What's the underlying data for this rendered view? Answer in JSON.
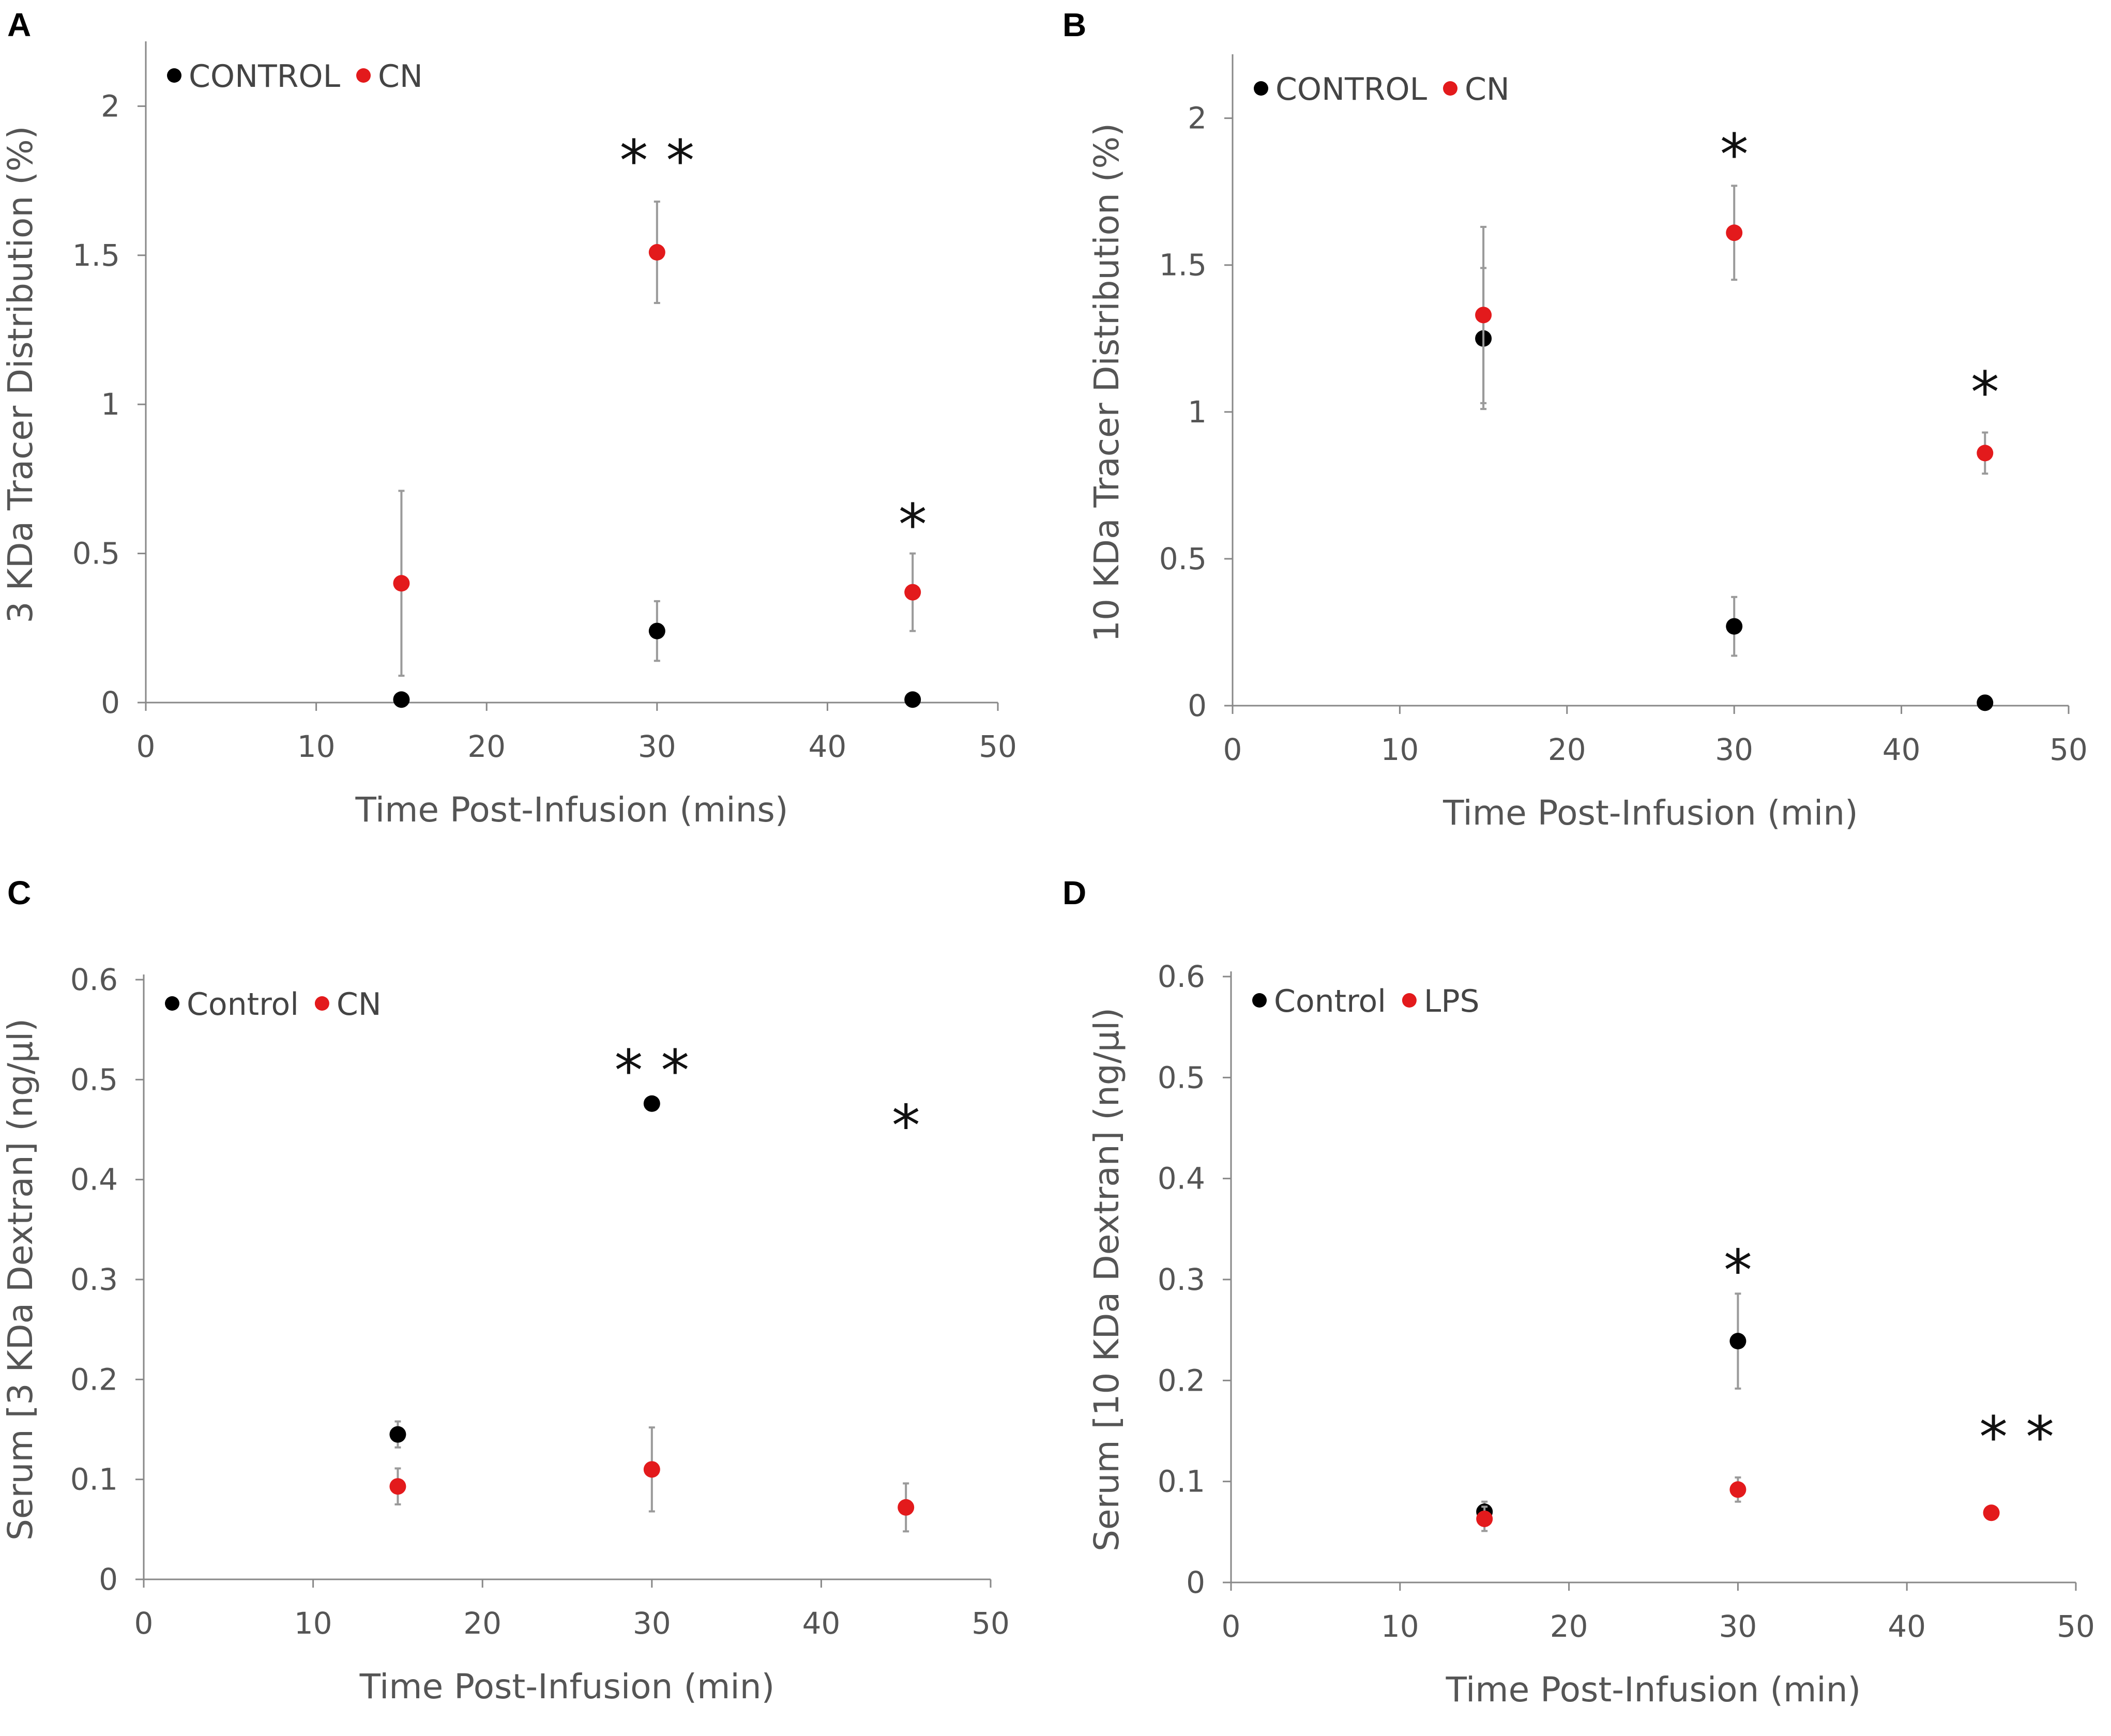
{
  "chart_data": [
    {
      "type": "scatter",
      "panel": "A",
      "xlabel": "Time Post-Infusion (mins)",
      "ylabel": "3 KDa Tracer Distribution (%)",
      "xlim": [
        0,
        50
      ],
      "ylim": [
        0,
        2.2
      ],
      "xticks": [
        "0",
        "10",
        "20",
        "30",
        "40",
        "50"
      ],
      "yticks": [
        "0",
        "0.5",
        "1",
        "1.5",
        "2"
      ],
      "ytick_values": [
        0,
        0.5,
        1,
        1.5,
        2
      ],
      "grid": false,
      "legend_position": "top-left",
      "series": [
        {
          "name": "CONTROL",
          "color": "#000000",
          "points": [
            {
              "x": 15,
              "y": 0.01,
              "err": 0
            },
            {
              "x": 30,
              "y": 0.24,
              "err": 0.1
            },
            {
              "x": 45,
              "y": 0.01,
              "err": 0
            }
          ]
        },
        {
          "name": "CN",
          "color": "#e31a1c",
          "points": [
            {
              "x": 15,
              "y": 0.4,
              "err": 0.31
            },
            {
              "x": 30,
              "y": 1.51,
              "err": 0.17
            },
            {
              "x": 45,
              "y": 0.37,
              "err": 0.13
            }
          ]
        }
      ],
      "annotations": [
        {
          "text": "* *",
          "x": 30,
          "y": 1.82
        },
        {
          "text": "*",
          "x": 45,
          "y": 0.6
        }
      ]
    },
    {
      "type": "scatter",
      "panel": "B",
      "xlabel": "Time Post-Infusion (min)",
      "ylabel": "10 KDa Tracer Distribution (%)",
      "xlim": [
        0,
        50
      ],
      "ylim": [
        0,
        2.2
      ],
      "xticks": [
        "0",
        "10",
        "20",
        "30",
        "40",
        "50"
      ],
      "yticks": [
        "0",
        "0.5",
        "1",
        "1.5",
        "2"
      ],
      "ytick_values": [
        0,
        0.5,
        1,
        1.5,
        2
      ],
      "grid": false,
      "legend_position": "top-left",
      "series": [
        {
          "name": "CONTROL",
          "color": "#000000",
          "points": [
            {
              "x": 15,
              "y": 1.25,
              "err": 0.24
            },
            {
              "x": 30,
              "y": 0.27,
              "err": 0.1
            },
            {
              "x": 45,
              "y": 0.01,
              "err": 0
            }
          ]
        },
        {
          "name": "CN",
          "color": "#e31a1c",
          "points": [
            {
              "x": 15,
              "y": 1.33,
              "err": 0.3
            },
            {
              "x": 30,
              "y": 1.61,
              "err": 0.16
            },
            {
              "x": 45,
              "y": 0.86,
              "err": 0.07
            }
          ]
        }
      ],
      "annotations": [
        {
          "text": "*",
          "x": 30,
          "y": 1.88
        },
        {
          "text": "*",
          "x": 45,
          "y": 1.07
        }
      ]
    },
    {
      "type": "scatter",
      "panel": "C",
      "xlabel": "Time Post-Infusion (min)",
      "ylabel": "Serum [3 KDa Dextran] (ng/μl)",
      "xlim": [
        0,
        50
      ],
      "ylim": [
        0,
        0.6
      ],
      "xticks": [
        "0",
        "10",
        "20",
        "30",
        "40",
        "50"
      ],
      "yticks": [
        "0",
        "0.1",
        "0.2",
        "0.3",
        "0.4",
        "0.5",
        "0.6"
      ],
      "ytick_values": [
        0,
        0.1,
        0.2,
        0.3,
        0.4,
        0.5,
        0.6
      ],
      "grid": false,
      "legend_position": "top-left",
      "series": [
        {
          "name": "Control",
          "color": "#000000",
          "points": [
            {
              "x": 15,
              "y": 0.145,
              "err": 0.013
            },
            {
              "x": 30,
              "y": 0.476,
              "err": 0.005
            }
          ]
        },
        {
          "name": "CN",
          "color": "#e31a1c",
          "points": [
            {
              "x": 15,
              "y": 0.093,
              "err": 0.018
            },
            {
              "x": 30,
              "y": 0.11,
              "err": 0.042
            },
            {
              "x": 45,
              "y": 0.072,
              "err": 0.024
            }
          ]
        }
      ],
      "annotations": [
        {
          "text": "* *",
          "x": 30,
          "y": 0.51
        },
        {
          "text": "*",
          "x": 45,
          "y": 0.455
        }
      ]
    },
    {
      "type": "scatter",
      "panel": "D",
      "xlabel": "Time Post-Infusion (min)",
      "ylabel": "Serum [10 KDa Dextran] (ng/μl)",
      "xlim": [
        0,
        50
      ],
      "ylim": [
        0,
        0.6
      ],
      "xticks": [
        "0",
        "10",
        "20",
        "30",
        "40",
        "50"
      ],
      "yticks": [
        "0",
        "0.1",
        "0.2",
        "0.3",
        "0.4",
        "0.5",
        "0.6"
      ],
      "ytick_values": [
        0,
        0.1,
        0.2,
        0.3,
        0.4,
        0.5,
        0.6
      ],
      "grid": false,
      "legend_position": "top-left",
      "series": [
        {
          "name": "Control",
          "color": "#000000",
          "points": [
            {
              "x": 15,
              "y": 0.07,
              "err": 0.01
            },
            {
              "x": 30,
              "y": 0.239,
              "err": 0.047
            }
          ]
        },
        {
          "name": "LPS",
          "color": "#e31a1c",
          "points": [
            {
              "x": 15,
              "y": 0.063,
              "err": 0.012
            },
            {
              "x": 30,
              "y": 0.092,
              "err": 0.012
            },
            {
              "x": 45,
              "y": 0.069,
              "err": 0.004
            }
          ]
        }
      ],
      "annotations": [
        {
          "text": "*",
          "x": 30,
          "y": 0.31
        },
        {
          "text": "* *",
          "x": 46.5,
          "y": 0.145
        }
      ]
    }
  ]
}
